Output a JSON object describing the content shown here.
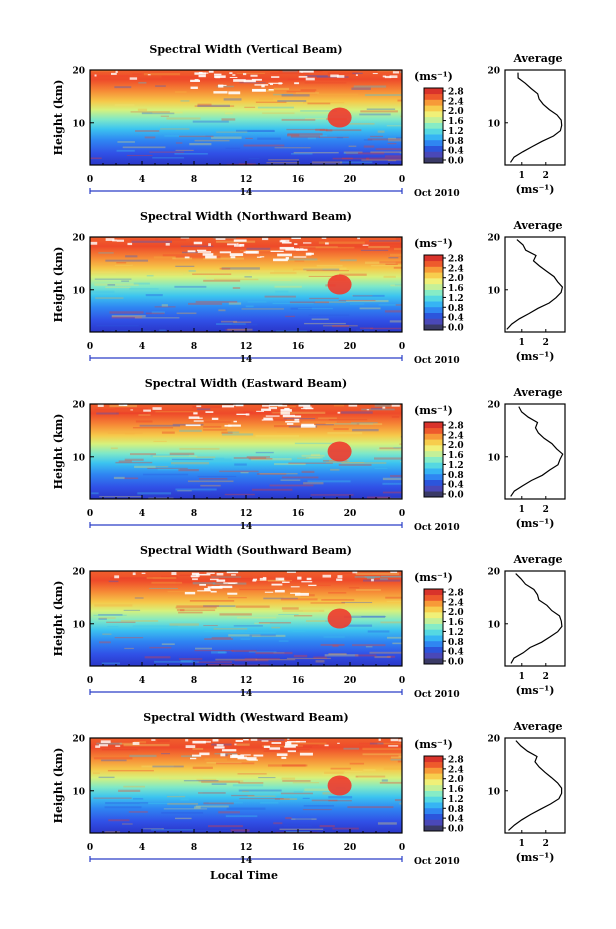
{
  "figure": {
    "bottom_xlabel": "Local Time",
    "date_suffix": "Oct 2010",
    "day_label": "14"
  },
  "colorbar": {
    "unit_label": "(ms⁻¹)",
    "ticks": [
      "2.8",
      "2.4",
      "2.0",
      "1.6",
      "1.2",
      "0.8",
      "0.4",
      "0.0"
    ],
    "colors": [
      "#3a3a66",
      "#4a48b8",
      "#2c55dc",
      "#2f86f2",
      "#36b4f4",
      "#55d8e2",
      "#86ecc6",
      "#c4f098",
      "#f0f078",
      "#f7cd4d",
      "#f79a38",
      "#ee5a2c",
      "#d9332b"
    ]
  },
  "chart_data": [
    {
      "type": "heatmap",
      "title": "Spectral Width (Vertical Beam)",
      "xlabel": "",
      "ylabel": "Height (km)",
      "xlim": [
        0,
        24
      ],
      "ylim": [
        2,
        20
      ],
      "xticks": [
        "0",
        "4",
        "8",
        "12",
        "16",
        "20",
        "0"
      ],
      "yticks": [
        "20",
        "10"
      ],
      "zlim": [
        0.0,
        2.8
      ],
      "profile": {
        "title": "Average",
        "xlabel": "(ms⁻¹)",
        "xlim": [
          0.3,
          2.8
        ],
        "xticks": [
          "1",
          "2"
        ],
        "ylim": [
          2,
          20
        ],
        "height_km": [
          2.5,
          3.5,
          4.5,
          5.5,
          6.5,
          7.5,
          8.5,
          9.5,
          10.5,
          11.5,
          12.5,
          13.5,
          14.5,
          15.5,
          16.5,
          17.5,
          18.5,
          19.5
        ],
        "width_ms": [
          0.5,
          0.7,
          1.0,
          1.5,
          1.9,
          2.3,
          2.55,
          2.7,
          2.7,
          2.5,
          2.2,
          1.9,
          1.7,
          1.65,
          1.4,
          1.1,
          0.9,
          0.8
        ]
      }
    },
    {
      "type": "heatmap",
      "title": "Spectral Width (Northward Beam)",
      "xlabel": "",
      "ylabel": "Height (km)",
      "xlim": [
        0,
        24
      ],
      "ylim": [
        2,
        20
      ],
      "xticks": [
        "0",
        "4",
        "8",
        "12",
        "16",
        "20",
        "0"
      ],
      "yticks": [
        "20",
        "10"
      ],
      "zlim": [
        0.0,
        2.8
      ],
      "profile": {
        "title": "Average",
        "xlabel": "(ms⁻¹)",
        "xlim": [
          0.3,
          2.8
        ],
        "xticks": [
          "1",
          "2"
        ],
        "ylim": [
          2,
          20
        ],
        "height_km": [
          2.5,
          3.5,
          4.5,
          5.5,
          6.5,
          7.5,
          8.5,
          9.5,
          10.5,
          11.5,
          12.5,
          13.5,
          14.5,
          15.5,
          16.5,
          17.5,
          18.5,
          19.5
        ],
        "width_ms": [
          0.4,
          0.6,
          0.9,
          1.3,
          1.7,
          2.1,
          2.4,
          2.6,
          2.7,
          2.55,
          2.3,
          2.0,
          1.75,
          1.5,
          1.6,
          1.2,
          1.0,
          0.8
        ]
      }
    },
    {
      "type": "heatmap",
      "title": "Spectral Width (Eastward Beam)",
      "xlabel": "",
      "ylabel": "Height (km)",
      "xlim": [
        0,
        24
      ],
      "ylim": [
        2,
        20
      ],
      "xticks": [
        "0",
        "4",
        "8",
        "12",
        "16",
        "20",
        "0"
      ],
      "yticks": [
        "20",
        "10"
      ],
      "zlim": [
        0.0,
        2.8
      ],
      "profile": {
        "title": "Average",
        "xlabel": "(ms⁻¹)",
        "xlim": [
          0.3,
          2.8
        ],
        "xticks": [
          "1",
          "2"
        ],
        "ylim": [
          2,
          20
        ],
        "height_km": [
          2.5,
          3.5,
          4.5,
          5.5,
          6.5,
          7.5,
          8.5,
          9.5,
          10.5,
          11.5,
          12.5,
          13.5,
          14.5,
          15.5,
          16.5,
          17.5,
          18.5,
          19.5
        ],
        "width_ms": [
          0.5,
          0.7,
          1.0,
          1.4,
          1.8,
          2.2,
          2.5,
          2.65,
          2.7,
          2.5,
          2.25,
          1.95,
          1.7,
          1.55,
          1.6,
          1.25,
          1.0,
          0.85
        ]
      }
    },
    {
      "type": "heatmap",
      "title": "Spectral Width (Southward Beam)",
      "xlabel": "",
      "ylabel": "Height (km)",
      "xlim": [
        0,
        24
      ],
      "ylim": [
        2,
        20
      ],
      "xticks": [
        "0",
        "4",
        "8",
        "12",
        "16",
        "20",
        "0"
      ],
      "yticks": [
        "20",
        "10"
      ],
      "zlim": [
        0.0,
        2.8
      ],
      "profile": {
        "title": "Average",
        "xlabel": "(ms⁻¹)",
        "xlim": [
          0.3,
          2.8
        ],
        "xticks": [
          "1",
          "2"
        ],
        "ylim": [
          2,
          20
        ],
        "height_km": [
          2.5,
          3.5,
          4.5,
          5.5,
          6.5,
          7.5,
          8.5,
          9.5,
          10.5,
          11.5,
          12.5,
          13.5,
          14.5,
          15.5,
          16.5,
          17.5,
          18.5,
          19.5
        ],
        "width_ms": [
          0.5,
          0.7,
          1.0,
          1.4,
          1.8,
          2.2,
          2.5,
          2.7,
          2.7,
          2.55,
          2.3,
          2.0,
          1.75,
          1.6,
          1.55,
          1.2,
          0.95,
          0.8
        ]
      }
    },
    {
      "type": "heatmap",
      "title": "Spectral Width (Westward Beam)",
      "xlabel": "Local Time",
      "ylabel": "Height (km)",
      "xlim": [
        0,
        24
      ],
      "ylim": [
        2,
        20
      ],
      "xticks": [
        "0",
        "4",
        "8",
        "12",
        "16",
        "20",
        "0"
      ],
      "yticks": [
        "20",
        "10"
      ],
      "zlim": [
        0.0,
        2.8
      ],
      "profile": {
        "title": "Average",
        "xlabel": "(ms⁻¹)",
        "xlim": [
          0.3,
          2.8
        ],
        "xticks": [
          "1",
          "2"
        ],
        "ylim": [
          2,
          20
        ],
        "height_km": [
          2.5,
          3.5,
          4.5,
          5.5,
          6.5,
          7.5,
          8.5,
          9.5,
          10.5,
          11.5,
          12.5,
          13.5,
          14.5,
          15.5,
          16.5,
          17.5,
          18.5,
          19.5
        ],
        "width_ms": [
          0.5,
          0.7,
          1.0,
          1.4,
          1.8,
          2.2,
          2.5,
          2.7,
          2.7,
          2.5,
          2.25,
          1.95,
          1.7,
          1.5,
          1.6,
          1.2,
          0.95,
          0.8
        ]
      }
    }
  ]
}
